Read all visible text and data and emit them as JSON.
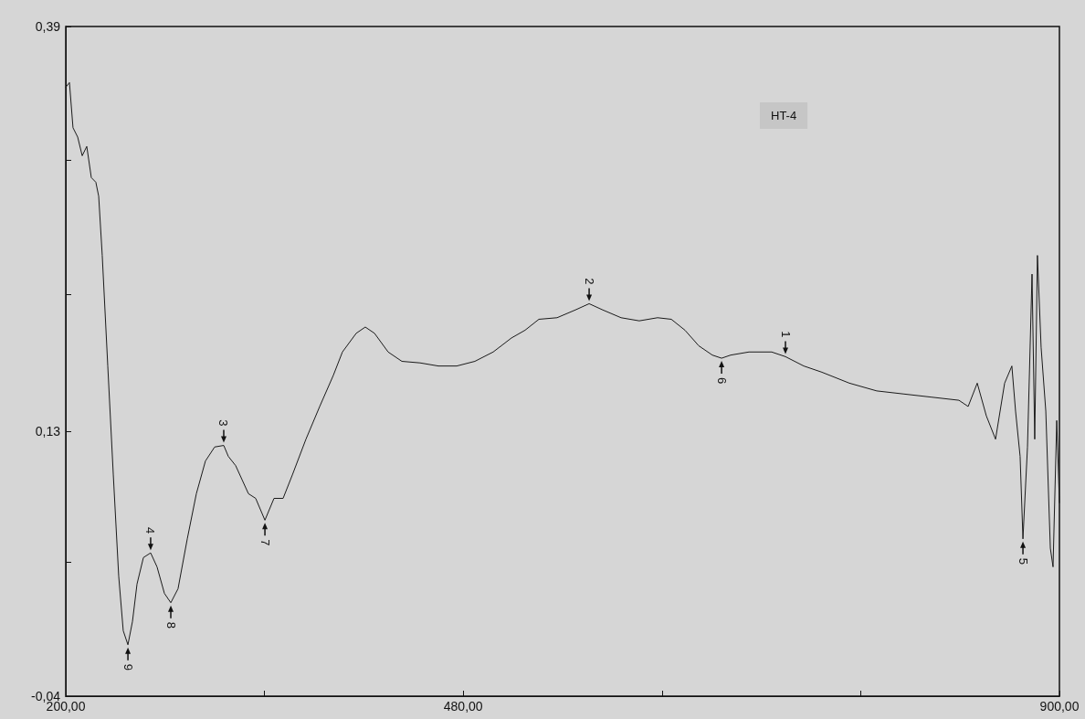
{
  "chart_data": {
    "type": "line",
    "title": "HT-4",
    "x": [
      200.0,
      202.6,
      205.1,
      208.4,
      211.6,
      214.8,
      218.0,
      221.2,
      223.2,
      225.7,
      229.6,
      233.5,
      237.3,
      240.5,
      243.8,
      247.0,
      250.2,
      254.7,
      259.8,
      264.3,
      269.5,
      274.0,
      279.1,
      285.6,
      292.0,
      298.4,
      304.9,
      311.3,
      314.5,
      319.7,
      324.2,
      328.7,
      333.8,
      340.3,
      346.7,
      353.1,
      359.6,
      369.2,
      378.9,
      388.5,
      394.9,
      404.6,
      411.0,
      417.5,
      427.1,
      436.8,
      449.6,
      462.5,
      475.4,
      488.2,
      501.1,
      514.0,
      523.6,
      533.3,
      546.1,
      559.0,
      568.7,
      578.3,
      591.2,
      604.0,
      616.9,
      626.6,
      636.2,
      645.9,
      655.5,
      662.0,
      668.4,
      681.3,
      697.3,
      707.0,
      719.9,
      732.7,
      752.0,
      771.3,
      790.6,
      809.9,
      829.2,
      835.7,
      842.1,
      848.5,
      855.0,
      861.4,
      866.5,
      869.1,
      872.3,
      874.3,
      877.5,
      880.7,
      882.6,
      884.5,
      887.1,
      890.4,
      893.6,
      895.5,
      898.1,
      900.0
    ],
    "series": [
      {
        "color": "#1a1a1a",
        "values": [
          0.351,
          0.354,
          0.325,
          0.319,
          0.307,
          0.313,
          0.293,
          0.29,
          0.281,
          0.243,
          0.172,
          0.102,
          0.037,
          0.002,
          -0.007,
          0.008,
          0.032,
          0.049,
          0.052,
          0.043,
          0.026,
          0.02,
          0.029,
          0.061,
          0.09,
          0.111,
          0.12,
          0.121,
          0.114,
          0.108,
          0.099,
          0.09,
          0.087,
          0.073,
          0.087,
          0.087,
          0.102,
          0.125,
          0.146,
          0.166,
          0.181,
          0.193,
          0.197,
          0.193,
          0.181,
          0.175,
          0.174,
          0.172,
          0.172,
          0.175,
          0.181,
          0.19,
          0.195,
          0.202,
          0.203,
          0.208,
          0.212,
          0.208,
          0.203,
          0.201,
          0.203,
          0.202,
          0.195,
          0.185,
          0.179,
          0.177,
          0.179,
          0.181,
          0.181,
          0.178,
          0.172,
          0.168,
          0.161,
          0.156,
          0.154,
          0.152,
          0.15,
          0.146,
          0.161,
          0.14,
          0.125,
          0.161,
          0.172,
          0.143,
          0.114,
          0.061,
          0.12,
          0.231,
          0.125,
          0.243,
          0.184,
          0.143,
          0.055,
          0.043,
          0.137,
          0.084
        ]
      }
    ],
    "xlim": [
      200,
      900
    ],
    "xticks": [
      {
        "value": 200,
        "label": "200,00"
      },
      {
        "value": 340,
        "label": null
      },
      {
        "value": 480,
        "label": "480,00"
      },
      {
        "value": 620,
        "label": null
      },
      {
        "value": 760,
        "label": null
      },
      {
        "value": 900,
        "label": "900,00"
      }
    ],
    "ylim": [
      -0.04,
      0.39
    ],
    "yticks": [
      {
        "value": -0.04,
        "label": "-0,04"
      },
      {
        "value": 0.046,
        "label": null
      },
      {
        "value": 0.13,
        "label": "0,13"
      },
      {
        "value": 0.218,
        "label": null
      },
      {
        "value": 0.304,
        "label": null
      },
      {
        "value": 0.39,
        "label": "0,39"
      }
    ],
    "annotations": [
      {
        "text": "9",
        "x": 243.8,
        "y": -0.007
      },
      {
        "text": "4",
        "x": 259.8,
        "y": 0.052
      },
      {
        "text": "8",
        "x": 274.0,
        "y": 0.02
      },
      {
        "text": "3",
        "x": 311.3,
        "y": 0.121
      },
      {
        "text": "7",
        "x": 340.3,
        "y": 0.073
      },
      {
        "text": "2",
        "x": 568.7,
        "y": 0.212
      },
      {
        "text": "6",
        "x": 662.0,
        "y": 0.177
      },
      {
        "text": "1",
        "x": 707.0,
        "y": 0.178
      },
      {
        "text": "5",
        "x": 874.3,
        "y": 0.061
      }
    ],
    "grid": false,
    "marker": "none",
    "line_style": "solid"
  }
}
